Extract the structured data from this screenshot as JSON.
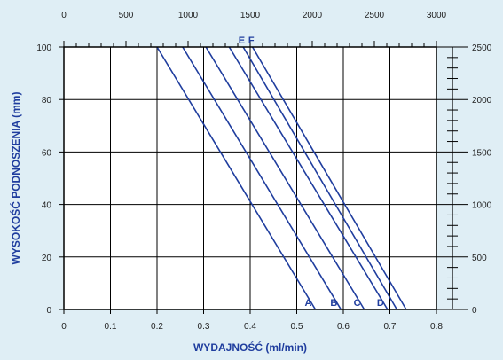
{
  "chart_data": {
    "type": "line",
    "xlabel": "WYDAJNOŚĆ (ml/min)",
    "ylabel": "WYSOKOŚĆ PODNOSZENIA (mm)",
    "xlim": [
      0,
      0.8
    ],
    "ylim": [
      0,
      100
    ],
    "x_ticks": [
      "0",
      "0.1",
      "0.2",
      "0.3",
      "0.4",
      "0.5",
      "0.6",
      "0.7",
      "0.8"
    ],
    "y_ticks": [
      "0",
      "20",
      "40",
      "60",
      "80",
      "100"
    ],
    "top_axis": {
      "lim": [
        0,
        3000
      ],
      "ticks": [
        "0",
        "500",
        "1000",
        "1500",
        "2000",
        "2500",
        "3000"
      ]
    },
    "right_axis": {
      "lim": [
        0,
        2500
      ],
      "ticks": [
        "0",
        "500",
        "1000",
        "1500",
        "2000",
        "2500"
      ]
    },
    "grid": true,
    "colors": {
      "line": "#1f3d9e",
      "label": "#1f3d9e",
      "axis": "#000000",
      "background": "#ffffff",
      "frame": "#dfeef5"
    },
    "series": [
      {
        "name": "A",
        "x": [
          0.2,
          0.54
        ],
        "y": [
          100,
          0
        ]
      },
      {
        "name": "B",
        "x": [
          0.255,
          0.595
        ],
        "y": [
          100,
          0
        ]
      },
      {
        "name": "C",
        "x": [
          0.305,
          0.645
        ],
        "y": [
          100,
          0
        ]
      },
      {
        "name": "D",
        "x": [
          0.355,
          0.695
        ],
        "y": [
          100,
          0
        ]
      },
      {
        "name": "E",
        "x": [
          0.385,
          0.715
        ],
        "y": [
          100,
          0
        ]
      },
      {
        "name": "F",
        "x": [
          0.405,
          0.735
        ],
        "y": [
          100,
          0
        ]
      }
    ]
  }
}
